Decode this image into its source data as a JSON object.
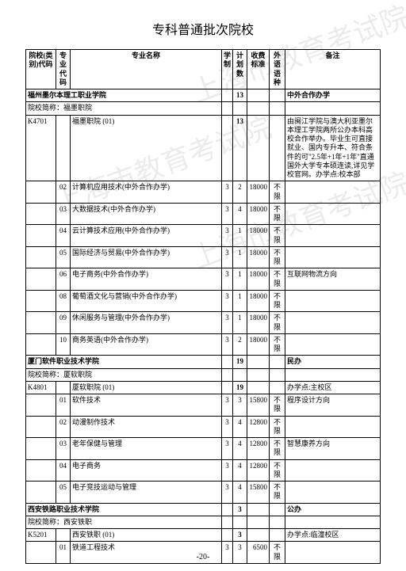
{
  "page": {
    "title": "专科普通批次院校",
    "page_number": "-20-"
  },
  "watermarks": {
    "w1": "上海市教育考试院",
    "w2": "上海市教育考试院",
    "w3": "上海市教育考试院"
  },
  "headers": {
    "inst_code": "院校(类别)代码",
    "major_code": "专业代码",
    "major_name": "专业名称",
    "system": "学制",
    "plan": "计划数",
    "fee": "收费标准",
    "lang": "外语语种",
    "note": "备注"
  },
  "rows": [
    {
      "type": "school",
      "inst": "",
      "span_text": "福州墨尔本理工职业学院",
      "plan": "13",
      "note": "中外合作办学"
    },
    {
      "type": "abbrev",
      "text": "院校简称：福墨职院"
    },
    {
      "type": "major",
      "inst": "K4701",
      "major": "",
      "name": "福墨职院 (01)",
      "sys": "",
      "plan": "13",
      "fee": "",
      "lang": "",
      "note": "由闽江学院与澳大利亚墨尔本理工学院两所公办本科高校合作举办。毕业生可直接就业、国内专升本、符合条件的可\"2.5年+1年+1年\"直通国外大学专本硕连读,详见学校官网。办学点:校本部"
    },
    {
      "type": "major",
      "inst": "",
      "major": "02",
      "name": "计算机应用技术(中外合作办学)",
      "sys": "3",
      "plan": "2",
      "fee": "18000",
      "lang": "不限",
      "note": ""
    },
    {
      "type": "major",
      "inst": "",
      "major": "03",
      "name": "大数据技术(中外合作办学)",
      "sys": "3",
      "plan": "4",
      "fee": "18000",
      "lang": "不限",
      "note": ""
    },
    {
      "type": "major",
      "inst": "",
      "major": "04",
      "name": "云计算技术应用(中外合作办学)",
      "sys": "3",
      "plan": "1",
      "fee": "18000",
      "lang": "不限",
      "note": ""
    },
    {
      "type": "major",
      "inst": "",
      "major": "05",
      "name": "国际经济与贸易(中外合作办学)",
      "sys": "3",
      "plan": "1",
      "fee": "18000",
      "lang": "不限",
      "note": ""
    },
    {
      "type": "major",
      "inst": "",
      "major": "06",
      "name": "电子商务(中外合作办学)",
      "sys": "3",
      "plan": "1",
      "fee": "18000",
      "lang": "不限",
      "note": "互联网物流方向"
    },
    {
      "type": "major",
      "inst": "",
      "major": "08",
      "name": "葡萄酒文化与营销(中外合作办学)",
      "sys": "3",
      "plan": "1",
      "fee": "18000",
      "lang": "不限",
      "note": ""
    },
    {
      "type": "major",
      "inst": "",
      "major": "09",
      "name": "休闲服务与管理(中外合作办学)",
      "sys": "3",
      "plan": "1",
      "fee": "18000",
      "lang": "不限",
      "note": ""
    },
    {
      "type": "major",
      "inst": "",
      "major": "10",
      "name": "商务英语(中外合作办学)",
      "sys": "3",
      "plan": "2",
      "fee": "18000",
      "lang": "不限",
      "note": ""
    },
    {
      "type": "school",
      "inst": "",
      "span_text": "厦门软件职业技术学院",
      "plan": "19",
      "note": "民办"
    },
    {
      "type": "abbrev",
      "text": "院校简称：厦软职院"
    },
    {
      "type": "major",
      "inst": "K4801",
      "major": "",
      "name": "厦软职院 (01)",
      "sys": "",
      "plan": "19",
      "fee": "",
      "lang": "",
      "note": "办学点:主校区"
    },
    {
      "type": "major",
      "inst": "",
      "major": "01",
      "name": "软件技术",
      "sys": "3",
      "plan": "3",
      "fee": "15800",
      "lang": "不限",
      "note": "程序设计方向"
    },
    {
      "type": "major",
      "inst": "",
      "major": "02",
      "name": "动漫制作技术",
      "sys": "3",
      "plan": "4",
      "fee": "12800",
      "lang": "不限",
      "note": ""
    },
    {
      "type": "major",
      "inst": "",
      "major": "03",
      "name": "老年保健与管理",
      "sys": "3",
      "plan": "4",
      "fee": "12800",
      "lang": "不限",
      "note": "智慧康养方向"
    },
    {
      "type": "major",
      "inst": "",
      "major": "04",
      "name": "电子商务",
      "sys": "3",
      "plan": "4",
      "fee": "12800",
      "lang": "不限",
      "note": ""
    },
    {
      "type": "major",
      "inst": "",
      "major": "05",
      "name": "电子竞技运动与管理",
      "sys": "3",
      "plan": "4",
      "fee": "15800",
      "lang": "不限",
      "note": ""
    },
    {
      "type": "school",
      "inst": "",
      "span_text": "西安铁路职业技术学院",
      "plan": "3",
      "note": "公办"
    },
    {
      "type": "abbrev",
      "text": "院校简称：西安铁职"
    },
    {
      "type": "major",
      "inst": "K5201",
      "major": "",
      "name": "西安铁职 (01)",
      "sys": "",
      "plan": "3",
      "fee": "",
      "lang": "",
      "note": "办学点:临潼校区"
    },
    {
      "type": "major",
      "inst": "",
      "major": "01",
      "name": "铁道工程技术",
      "sys": "3",
      "plan": "3",
      "fee": "6500",
      "lang": "不限",
      "note": ""
    }
  ]
}
